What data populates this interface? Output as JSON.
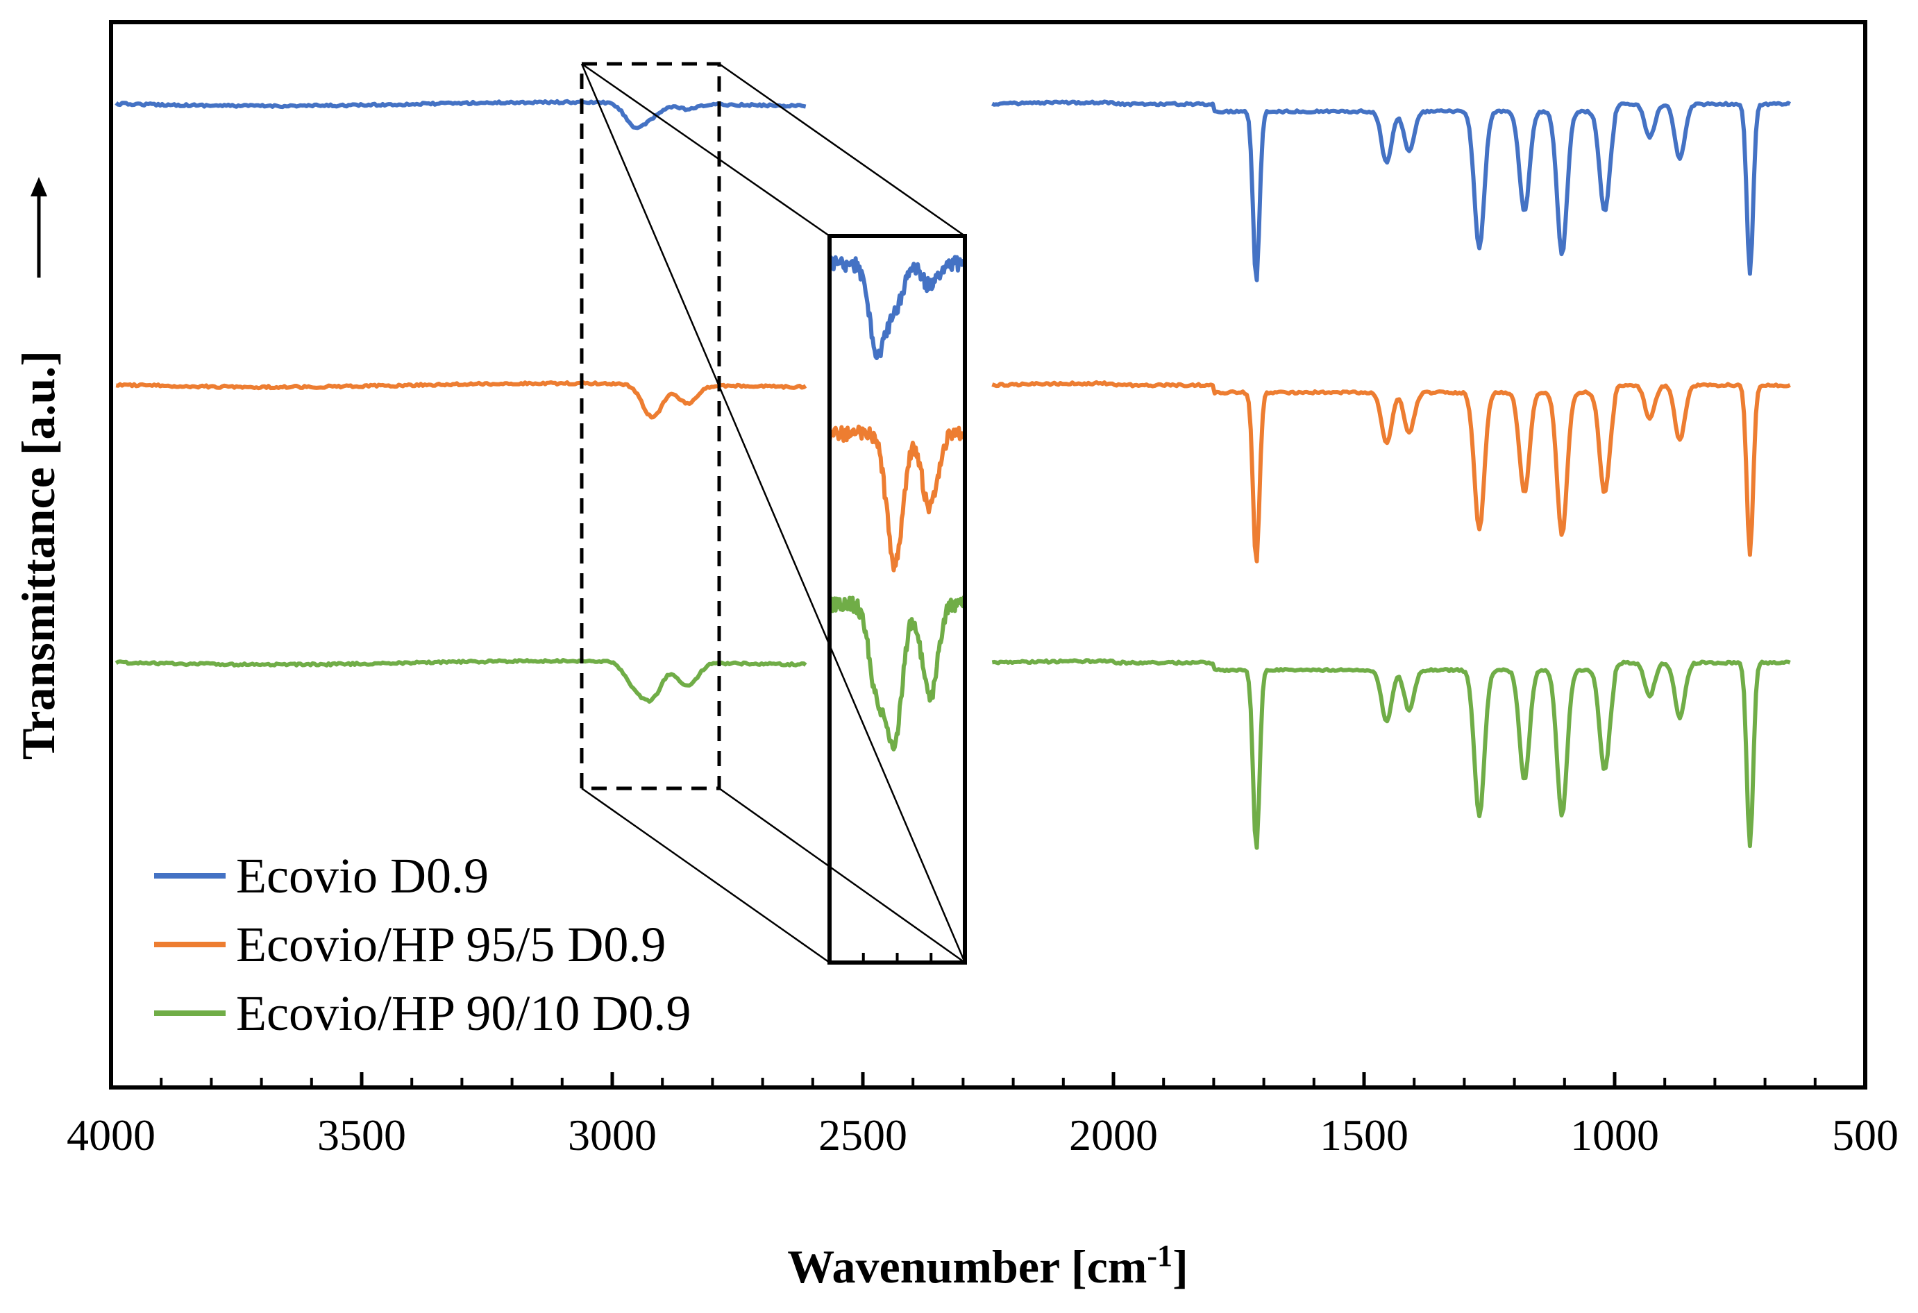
{
  "chart_data": {
    "type": "line",
    "title": "",
    "xlabel": "Wavenumber [cm",
    "xlabel_superscript": "-1",
    "xlabel_suffix": "]",
    "ylabel": "Transmittance [a.u.]",
    "ylabel_arrow": "→",
    "xlim": [
      4000,
      500
    ],
    "x_reversed": true,
    "xticks": [
      4000,
      3500,
      3000,
      2500,
      2000,
      1500,
      1000,
      500
    ],
    "y_ticks_shown": false,
    "grid": false,
    "legend_position": "bottom-left",
    "inset": {
      "description": "magnified C-H stretching region",
      "source_range_cm1": [
        3050,
        2780
      ],
      "frame_style": "dashed source box, solid inset box"
    },
    "series": [
      {
        "name": "Ecovio D0.9",
        "color": "#4472C4",
        "offset": 2,
        "baseline_points": [
          [
            4000,
            0.96
          ],
          [
            3500,
            0.955
          ],
          [
            3100,
            0.955
          ],
          [
            2960,
            0.88
          ],
          [
            2920,
            0.91
          ],
          [
            2850,
            0.93
          ],
          [
            2800,
            0.955
          ],
          [
            2000,
            0.96
          ],
          [
            1800,
            0.96
          ]
        ],
        "bands": [
          {
            "center": 2955,
            "depth": 0.12
          },
          {
            "center": 2920,
            "depth": 0.06
          },
          {
            "center": 2850,
            "depth": 0.03
          },
          {
            "center": 1715,
            "depth": 0.93
          },
          {
            "center": 1455,
            "depth": 0.28
          },
          {
            "center": 1410,
            "depth": 0.22
          },
          {
            "center": 1270,
            "depth": 0.75
          },
          {
            "center": 1180,
            "depth": 0.55
          },
          {
            "center": 1105,
            "depth": 0.78
          },
          {
            "center": 1020,
            "depth": 0.55
          },
          {
            "center": 930,
            "depth": 0.18
          },
          {
            "center": 870,
            "depth": 0.3
          },
          {
            "center": 730,
            "depth": 0.92
          }
        ]
      },
      {
        "name": "Ecovio/HP 95/5 D0.9",
        "color": "#ED7D31",
        "offset": 1,
        "bands": [
          {
            "center": 2920,
            "depth": 0.18
          },
          {
            "center": 2850,
            "depth": 0.1
          },
          {
            "center": 1715,
            "depth": 0.93
          },
          {
            "center": 1455,
            "depth": 0.28
          },
          {
            "center": 1410,
            "depth": 0.22
          },
          {
            "center": 1270,
            "depth": 0.75
          },
          {
            "center": 1180,
            "depth": 0.55
          },
          {
            "center": 1105,
            "depth": 0.78
          },
          {
            "center": 1020,
            "depth": 0.55
          },
          {
            "center": 930,
            "depth": 0.18
          },
          {
            "center": 870,
            "depth": 0.3
          },
          {
            "center": 730,
            "depth": 0.92
          }
        ]
      },
      {
        "name": "Ecovio/HP 90/10 D0.9",
        "color": "#70AD47",
        "offset": 0,
        "bands": [
          {
            "center": 2955,
            "depth": 0.12
          },
          {
            "center": 2920,
            "depth": 0.18
          },
          {
            "center": 2850,
            "depth": 0.13
          },
          {
            "center": 1715,
            "depth": 0.98
          },
          {
            "center": 1455,
            "depth": 0.28
          },
          {
            "center": 1410,
            "depth": 0.22
          },
          {
            "center": 1270,
            "depth": 0.8
          },
          {
            "center": 1180,
            "depth": 0.6
          },
          {
            "center": 1105,
            "depth": 0.8
          },
          {
            "center": 1020,
            "depth": 0.55
          },
          {
            "center": 930,
            "depth": 0.18
          },
          {
            "center": 870,
            "depth": 0.3
          },
          {
            "center": 730,
            "depth": 1.0
          }
        ]
      }
    ]
  }
}
